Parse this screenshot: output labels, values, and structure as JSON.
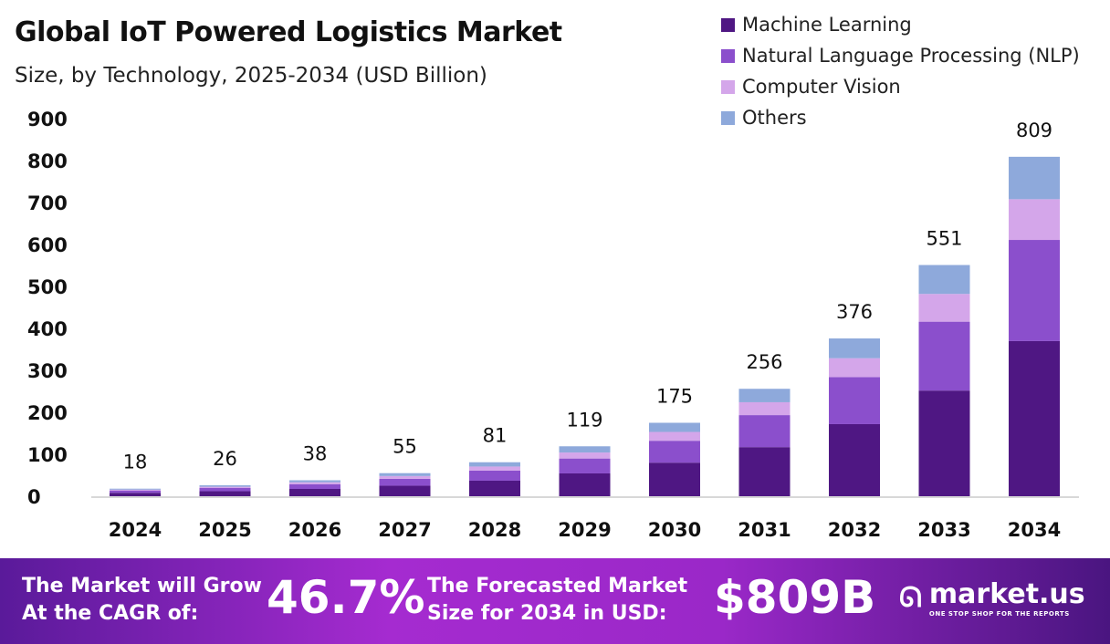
{
  "chart_data": {
    "type": "bar",
    "stacked": true,
    "title": "Global IoT Powered Logistics Market",
    "subtitle": "Size, by Technology, 2025-2034 (USD Billion)",
    "categories": [
      "2024",
      "2025",
      "2026",
      "2027",
      "2028",
      "2029",
      "2030",
      "2031",
      "2032",
      "2033",
      "2034"
    ],
    "totals": [
      18,
      26,
      38,
      55,
      81,
      119,
      175,
      256,
      376,
      551,
      809
    ],
    "series": [
      {
        "name": "Machine Learning",
        "color": "#4f1783",
        "values": [
          8.2,
          11.9,
          17.4,
          25.1,
          37.0,
          54.4,
          80.0,
          117.0,
          171.8,
          251.8,
          369.7
        ]
      },
      {
        "name": "Natural Language Processing (NLP)",
        "color": "#8b4fcc",
        "values": [
          5.4,
          7.7,
          11.3,
          16.4,
          24.1,
          35.5,
          52.2,
          76.3,
          112.0,
          164.2,
          241.1
        ]
      },
      {
        "name": "Computer Vision",
        "color": "#d4a6ea",
        "values": [
          2.2,
          3.1,
          4.6,
          6.6,
          9.7,
          14.3,
          21.0,
          30.7,
          45.1,
          66.1,
          97.1
        ]
      },
      {
        "name": "Others",
        "color": "#8ea9db",
        "values": [
          2.2,
          3.3,
          4.7,
          6.9,
          10.2,
          14.8,
          21.8,
          32.0,
          47.1,
          68.9,
          101.1
        ]
      }
    ],
    "yticks": [
      0,
      100,
      200,
      300,
      400,
      500,
      600,
      700,
      800,
      900
    ],
    "ylim": [
      0,
      900
    ],
    "grid": false,
    "legend": "top-right"
  },
  "footer": {
    "cagr_label_1": "The Market will Grow",
    "cagr_label_2": "At the CAGR of:",
    "cagr_value": "46.7%",
    "forecast_label_1": "The Forecasted Market",
    "forecast_label_2": "Size for 2034 in USD:",
    "forecast_value": "$809B",
    "brand": "market.us",
    "tagline": "ONE STOP SHOP FOR THE REPORTS"
  }
}
